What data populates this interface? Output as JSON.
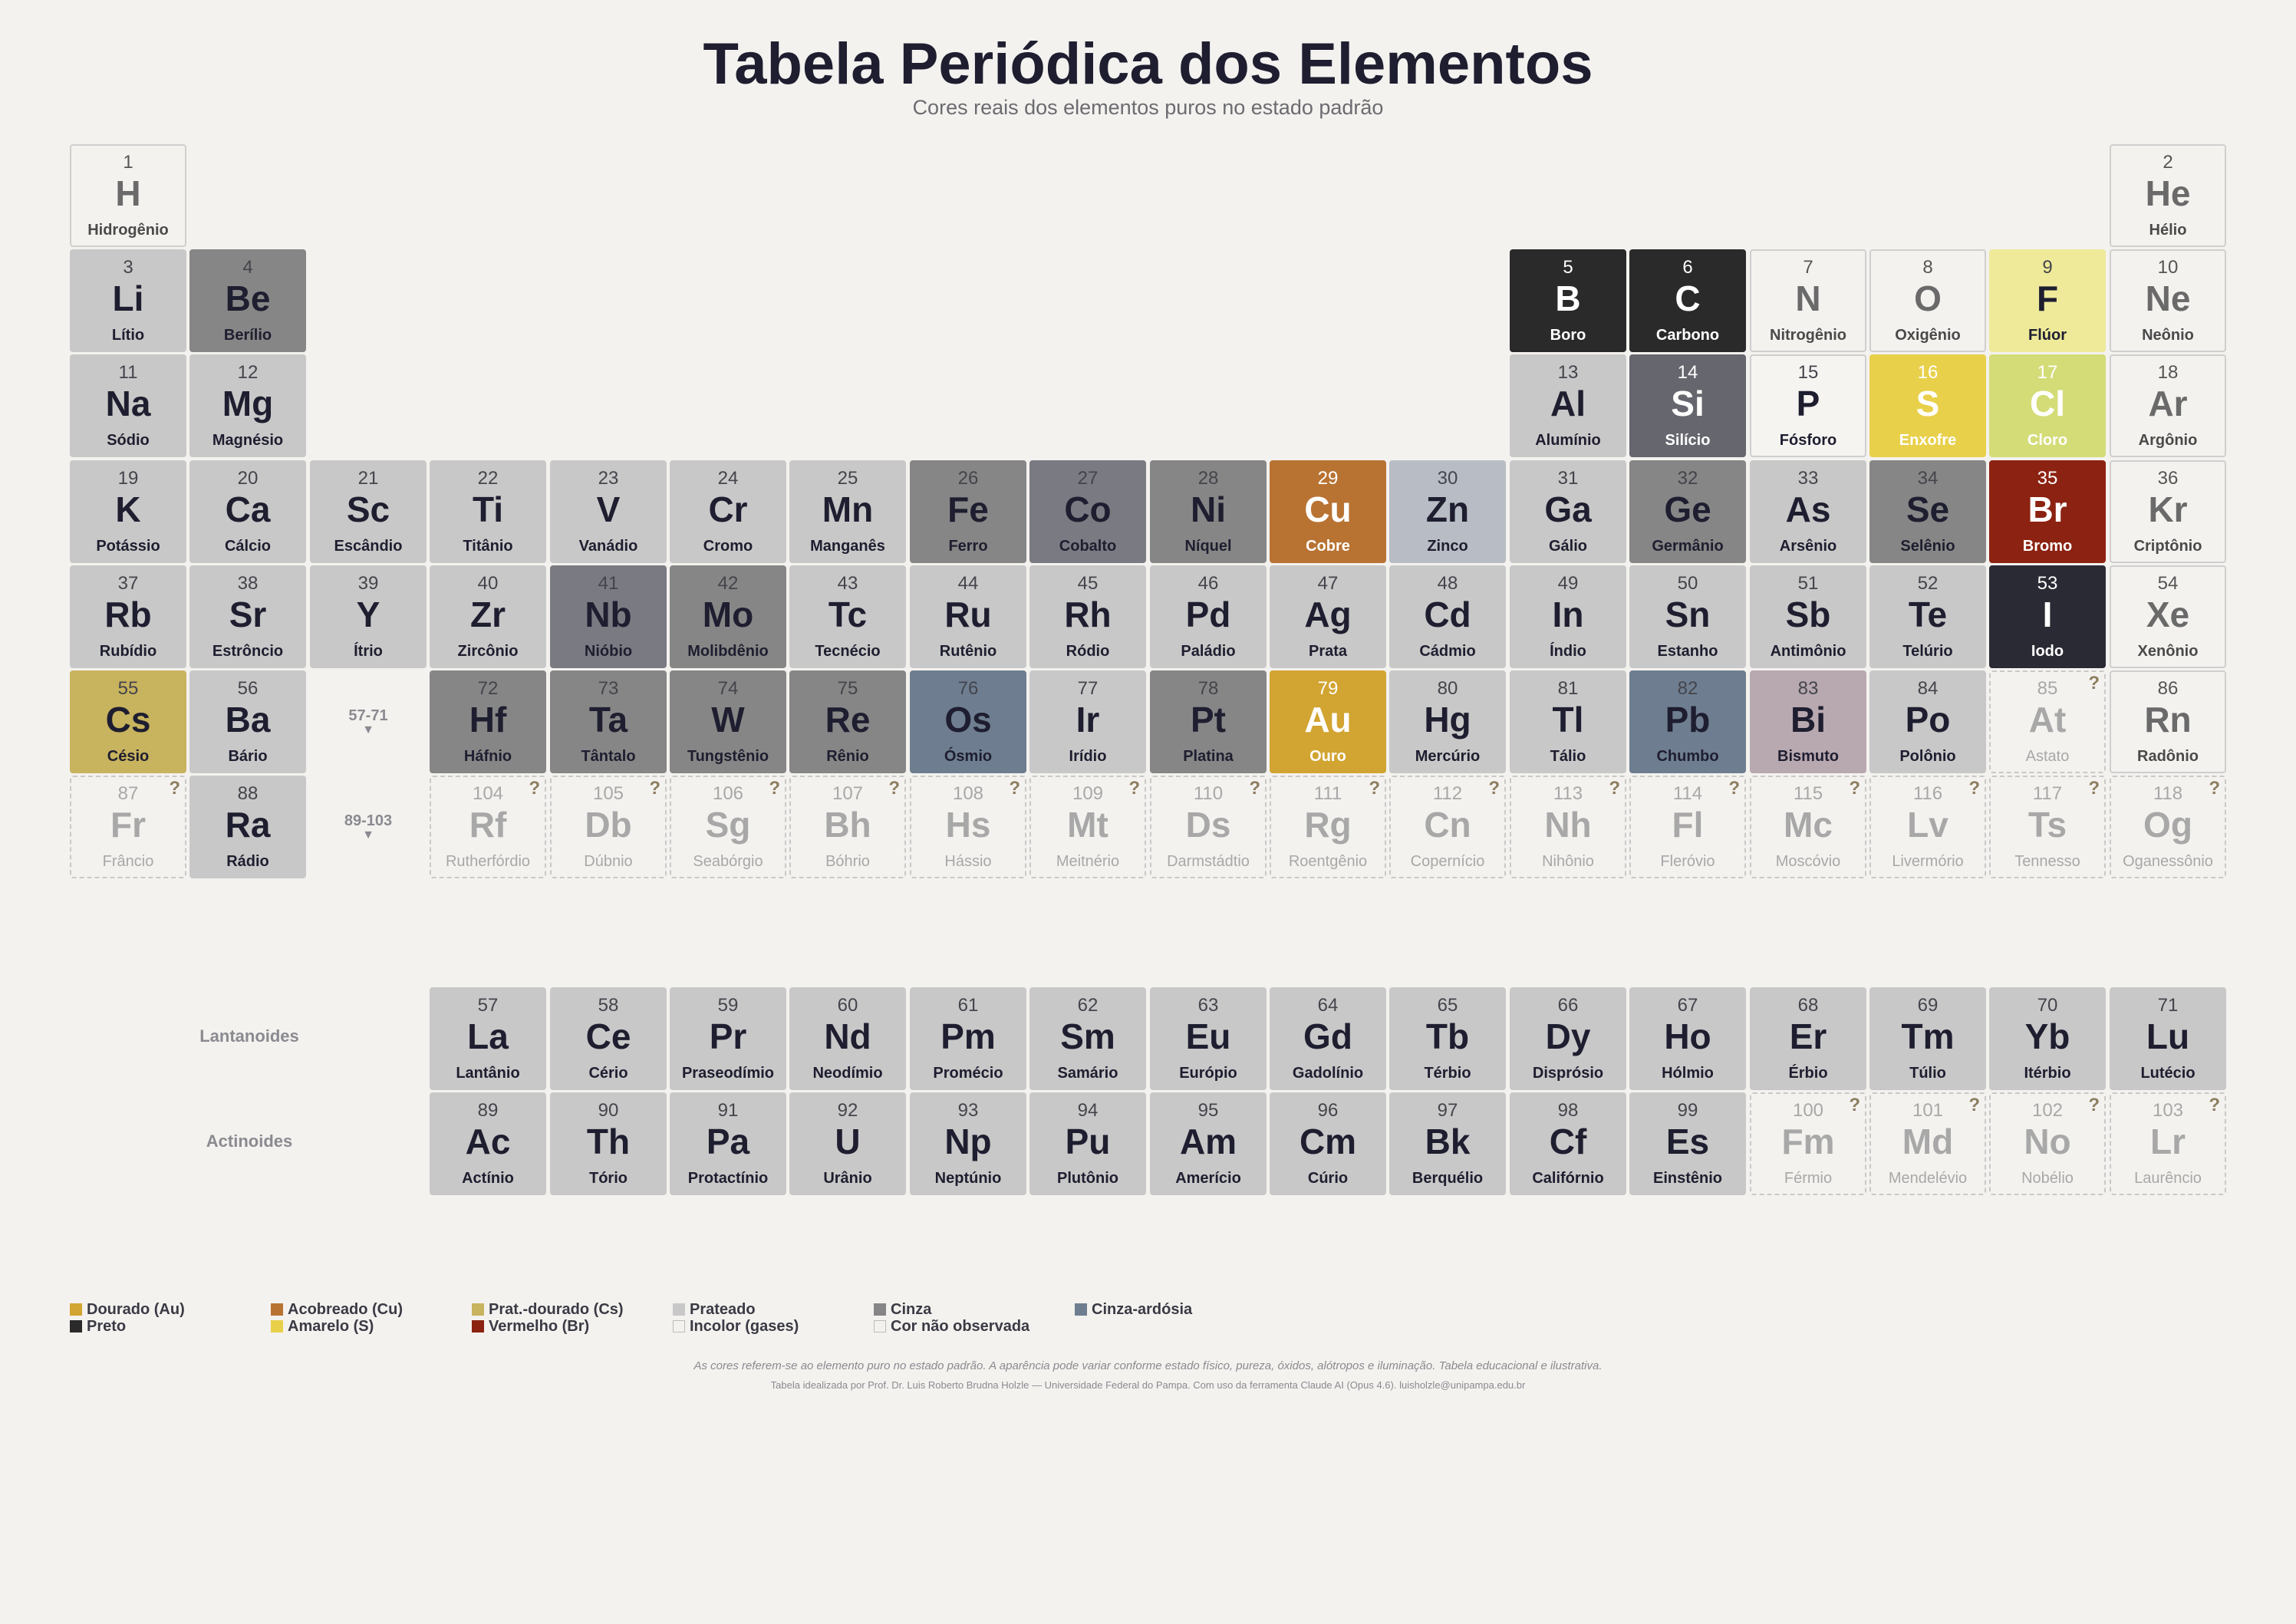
{
  "title": "Tabela Periódica dos Elementos",
  "subtitle": "Cores reais dos elementos puros no estado padrão",
  "colors": {
    "dourado": "#d2a431",
    "acobreado": "#b87333",
    "prat_dourado": "#c8b35e",
    "prateado": "#c8c8c8",
    "cinza": "#868686",
    "cinza_ardosia": "#6e7e90",
    "preto": "#2a2a2a",
    "amarelo": "#e8d04a",
    "vermelho": "#8c2211",
    "incolor": "#f4f2ef"
  },
  "elements": [
    {
      "n": "1",
      "s": "H",
      "name": "Hidrogênio",
      "row": 1,
      "col": 1,
      "color": "#f4f2ef",
      "kind": "gas"
    },
    {
      "n": "2",
      "s": "He",
      "name": "Hélio",
      "row": 1,
      "col": 18,
      "color": "#f4f2ef",
      "kind": "gas"
    },
    {
      "n": "3",
      "s": "Li",
      "name": "Lítio",
      "row": 2,
      "col": 1,
      "color": "#c8c8c8",
      "kind": "light"
    },
    {
      "n": "4",
      "s": "Be",
      "name": "Berílio",
      "row": 2,
      "col": 2,
      "color": "#868686",
      "kind": "light"
    },
    {
      "n": "5",
      "s": "B",
      "name": "Boro",
      "row": 2,
      "col": 13,
      "color": "#2a2a2a",
      "kind": "dark"
    },
    {
      "n": "6",
      "s": "C",
      "name": "Carbono",
      "row": 2,
      "col": 14,
      "color": "#2a2a2a",
      "kind": "dark"
    },
    {
      "n": "7",
      "s": "N",
      "name": "Nitrogênio",
      "row": 2,
      "col": 15,
      "color": "#f4f2ef",
      "kind": "gas"
    },
    {
      "n": "8",
      "s": "O",
      "name": "Oxigênio",
      "row": 2,
      "col": 16,
      "color": "#f4f2ef",
      "kind": "gas"
    },
    {
      "n": "9",
      "s": "F",
      "name": "Flúor",
      "row": 2,
      "col": 17,
      "color": "#eeea9a",
      "kind": "light"
    },
    {
      "n": "10",
      "s": "Ne",
      "name": "Neônio",
      "row": 2,
      "col": 18,
      "color": "#f4f2ef",
      "kind": "gas"
    },
    {
      "n": "11",
      "s": "Na",
      "name": "Sódio",
      "row": 3,
      "col": 1,
      "color": "#c8c8c8",
      "kind": "light"
    },
    {
      "n": "12",
      "s": "Mg",
      "name": "Magnésio",
      "row": 3,
      "col": 2,
      "color": "#c8c8c8",
      "kind": "light"
    },
    {
      "n": "13",
      "s": "Al",
      "name": "Alumínio",
      "row": 3,
      "col": 13,
      "color": "#c8c8c8",
      "kind": "light"
    },
    {
      "n": "14",
      "s": "Si",
      "name": "Silício",
      "row": 3,
      "col": 14,
      "color": "#66666e",
      "kind": "dark"
    },
    {
      "n": "15",
      "s": "P",
      "name": "Fósforo",
      "row": 3,
      "col": 15,
      "color": "#f6f4f1",
      "kind": "light"
    },
    {
      "n": "16",
      "s": "S",
      "name": "Enxofre",
      "row": 3,
      "col": 16,
      "color": "#e8d04a",
      "kind": "dark"
    },
    {
      "n": "17",
      "s": "Cl",
      "name": "Cloro",
      "row": 3,
      "col": 17,
      "color": "#d4dc78",
      "kind": "dark"
    },
    {
      "n": "18",
      "s": "Ar",
      "name": "Argônio",
      "row": 3,
      "col": 18,
      "color": "#f4f2ef",
      "kind": "gas"
    },
    {
      "n": "19",
      "s": "K",
      "name": "Potássio",
      "row": 4,
      "col": 1,
      "color": "#c8c8c8",
      "kind": "light"
    },
    {
      "n": "20",
      "s": "Ca",
      "name": "Cálcio",
      "row": 4,
      "col": 2,
      "color": "#c8c8c8",
      "kind": "light"
    },
    {
      "n": "21",
      "s": "Sc",
      "name": "Escândio",
      "row": 4,
      "col": 3,
      "color": "#c8c8c8",
      "kind": "light"
    },
    {
      "n": "22",
      "s": "Ti",
      "name": "Titânio",
      "row": 4,
      "col": 4,
      "color": "#c8c8c8",
      "kind": "light"
    },
    {
      "n": "23",
      "s": "V",
      "name": "Vanádio",
      "row": 4,
      "col": 5,
      "color": "#c8c8c8",
      "kind": "light"
    },
    {
      "n": "24",
      "s": "Cr",
      "name": "Cromo",
      "row": 4,
      "col": 6,
      "color": "#c8c8c8",
      "kind": "light"
    },
    {
      "n": "25",
      "s": "Mn",
      "name": "Manganês",
      "row": 4,
      "col": 7,
      "color": "#c8c8c8",
      "kind": "light"
    },
    {
      "n": "26",
      "s": "Fe",
      "name": "Ferro",
      "row": 4,
      "col": 8,
      "color": "#868686",
      "kind": "light"
    },
    {
      "n": "27",
      "s": "Co",
      "name": "Cobalto",
      "row": 4,
      "col": 9,
      "color": "#7a7a82",
      "kind": "light"
    },
    {
      "n": "28",
      "s": "Ni",
      "name": "Níquel",
      "row": 4,
      "col": 10,
      "color": "#868686",
      "kind": "light"
    },
    {
      "n": "29",
      "s": "Cu",
      "name": "Cobre",
      "row": 4,
      "col": 11,
      "color": "#b87333",
      "kind": "dark"
    },
    {
      "n": "30",
      "s": "Zn",
      "name": "Zinco",
      "row": 4,
      "col": 12,
      "color": "#b8bcc4",
      "kind": "light"
    },
    {
      "n": "31",
      "s": "Ga",
      "name": "Gálio",
      "row": 4,
      "col": 13,
      "color": "#c8c8c8",
      "kind": "light"
    },
    {
      "n": "32",
      "s": "Ge",
      "name": "Germânio",
      "row": 4,
      "col": 14,
      "color": "#868686",
      "kind": "light"
    },
    {
      "n": "33",
      "s": "As",
      "name": "Arsênio",
      "row": 4,
      "col": 15,
      "color": "#c8c8c8",
      "kind": "light"
    },
    {
      "n": "34",
      "s": "Se",
      "name": "Selênio",
      "row": 4,
      "col": 16,
      "color": "#868686",
      "kind": "light"
    },
    {
      "n": "35",
      "s": "Br",
      "name": "Bromo",
      "row": 4,
      "col": 17,
      "color": "#8c2211",
      "kind": "dark"
    },
    {
      "n": "36",
      "s": "Kr",
      "name": "Criptônio",
      "row": 4,
      "col": 18,
      "color": "#f4f2ef",
      "kind": "gas"
    },
    {
      "n": "37",
      "s": "Rb",
      "name": "Rubídio",
      "row": 5,
      "col": 1,
      "color": "#c8c8c8",
      "kind": "light"
    },
    {
      "n": "38",
      "s": "Sr",
      "name": "Estrôncio",
      "row": 5,
      "col": 2,
      "color": "#c8c8c8",
      "kind": "light"
    },
    {
      "n": "39",
      "s": "Y",
      "name": "Ítrio",
      "row": 5,
      "col": 3,
      "color": "#c8c8c8",
      "kind": "light"
    },
    {
      "n": "40",
      "s": "Zr",
      "name": "Zircônio",
      "row": 5,
      "col": 4,
      "color": "#c8c8c8",
      "kind": "light"
    },
    {
      "n": "41",
      "s": "Nb",
      "name": "Nióbio",
      "row": 5,
      "col": 5,
      "color": "#7a7a82",
      "kind": "light"
    },
    {
      "n": "42",
      "s": "Mo",
      "name": "Molibdênio",
      "row": 5,
      "col": 6,
      "color": "#868686",
      "kind": "light"
    },
    {
      "n": "43",
      "s": "Tc",
      "name": "Tecnécio",
      "row": 5,
      "col": 7,
      "color": "#c8c8c8",
      "kind": "light"
    },
    {
      "n": "44",
      "s": "Ru",
      "name": "Rutênio",
      "row": 5,
      "col": 8,
      "color": "#c8c8c8",
      "kind": "light"
    },
    {
      "n": "45",
      "s": "Rh",
      "name": "Ródio",
      "row": 5,
      "col": 9,
      "color": "#c8c8c8",
      "kind": "light"
    },
    {
      "n": "46",
      "s": "Pd",
      "name": "Paládio",
      "row": 5,
      "col": 10,
      "color": "#c8c8c8",
      "kind": "light"
    },
    {
      "n": "47",
      "s": "Ag",
      "name": "Prata",
      "row": 5,
      "col": 11,
      "color": "#c8c8c8",
      "kind": "light"
    },
    {
      "n": "48",
      "s": "Cd",
      "name": "Cádmio",
      "row": 5,
      "col": 12,
      "color": "#c8c8c8",
      "kind": "light"
    },
    {
      "n": "49",
      "s": "In",
      "name": "Índio",
      "row": 5,
      "col": 13,
      "color": "#c8c8c8",
      "kind": "light"
    },
    {
      "n": "50",
      "s": "Sn",
      "name": "Estanho",
      "row": 5,
      "col": 14,
      "color": "#c8c8c8",
      "kind": "light"
    },
    {
      "n": "51",
      "s": "Sb",
      "name": "Antimônio",
      "row": 5,
      "col": 15,
      "color": "#c8c8c8",
      "kind": "light"
    },
    {
      "n": "52",
      "s": "Te",
      "name": "Telúrio",
      "row": 5,
      "col": 16,
      "color": "#c8c8c8",
      "kind": "light"
    },
    {
      "n": "53",
      "s": "I",
      "name": "Iodo",
      "row": 5,
      "col": 17,
      "color": "#2a2a34",
      "kind": "dark"
    },
    {
      "n": "54",
      "s": "Xe",
      "name": "Xenônio",
      "row": 5,
      "col": 18,
      "color": "#f4f2ef",
      "kind": "gas"
    },
    {
      "n": "55",
      "s": "Cs",
      "name": "Césio",
      "row": 6,
      "col": 1,
      "color": "#c8b35e",
      "kind": "light"
    },
    {
      "n": "56",
      "s": "Ba",
      "name": "Bário",
      "row": 6,
      "col": 2,
      "color": "#c8c8c8",
      "kind": "light"
    },
    {
      "n": "72",
      "s": "Hf",
      "name": "Háfnio",
      "row": 6,
      "col": 4,
      "color": "#868686",
      "kind": "light"
    },
    {
      "n": "73",
      "s": "Ta",
      "name": "Tântalo",
      "row": 6,
      "col": 5,
      "color": "#868686",
      "kind": "light"
    },
    {
      "n": "74",
      "s": "W",
      "name": "Tungstênio",
      "row": 6,
      "col": 6,
      "color": "#868686",
      "kind": "light"
    },
    {
      "n": "75",
      "s": "Re",
      "name": "Rênio",
      "row": 6,
      "col": 7,
      "color": "#868686",
      "kind": "light"
    },
    {
      "n": "76",
      "s": "Os",
      "name": "Ósmio",
      "row": 6,
      "col": 8,
      "color": "#6e7e90",
      "kind": "light"
    },
    {
      "n": "77",
      "s": "Ir",
      "name": "Irídio",
      "row": 6,
      "col": 9,
      "color": "#c8c8c8",
      "kind": "light"
    },
    {
      "n": "78",
      "s": "Pt",
      "name": "Platina",
      "row": 6,
      "col": 10,
      "color": "#868686",
      "kind": "light"
    },
    {
      "n": "79",
      "s": "Au",
      "name": "Ouro",
      "row": 6,
      "col": 11,
      "color": "#d2a431",
      "kind": "dark"
    },
    {
      "n": "80",
      "s": "Hg",
      "name": "Mercúrio",
      "row": 6,
      "col": 12,
      "color": "#c8c8c8",
      "kind": "light"
    },
    {
      "n": "81",
      "s": "Tl",
      "name": "Tálio",
      "row": 6,
      "col": 13,
      "color": "#c8c8c8",
      "kind": "light"
    },
    {
      "n": "82",
      "s": "Pb",
      "name": "Chumbo",
      "row": 6,
      "col": 14,
      "color": "#6e7e90",
      "kind": "light"
    },
    {
      "n": "83",
      "s": "Bi",
      "name": "Bismuto",
      "row": 6,
      "col": 15,
      "color": "#b8a8b0",
      "kind": "light"
    },
    {
      "n": "84",
      "s": "Po",
      "name": "Polônio",
      "row": 6,
      "col": 16,
      "color": "#c8c8c8",
      "kind": "light"
    },
    {
      "n": "85",
      "s": "At",
      "name": "Astato",
      "row": 6,
      "col": 17,
      "color": "#f4f2ef",
      "kind": "unknown"
    },
    {
      "n": "86",
      "s": "Rn",
      "name": "Radônio",
      "row": 6,
      "col": 18,
      "color": "#f4f2ef",
      "kind": "gas"
    },
    {
      "n": "87",
      "s": "Fr",
      "name": "Frâncio",
      "row": 7,
      "col": 1,
      "color": "#f4f2ef",
      "kind": "unknown"
    },
    {
      "n": "88",
      "s": "Ra",
      "name": "Rádio",
      "row": 7,
      "col": 2,
      "color": "#c8c8c8",
      "kind": "light"
    },
    {
      "n": "104",
      "s": "Rf",
      "name": "Rutherfórdio",
      "row": 7,
      "col": 4,
      "color": "#f4f2ef",
      "kind": "unknown"
    },
    {
      "n": "105",
      "s": "Db",
      "name": "Dúbnio",
      "row": 7,
      "col": 5,
      "color": "#f4f2ef",
      "kind": "unknown"
    },
    {
      "n": "106",
      "s": "Sg",
      "name": "Seabórgio",
      "row": 7,
      "col": 6,
      "color": "#f4f2ef",
      "kind": "unknown"
    },
    {
      "n": "107",
      "s": "Bh",
      "name": "Bóhrio",
      "row": 7,
      "col": 7,
      "color": "#f4f2ef",
      "kind": "unknown"
    },
    {
      "n": "108",
      "s": "Hs",
      "name": "Hássio",
      "row": 7,
      "col": 8,
      "color": "#f4f2ef",
      "kind": "unknown"
    },
    {
      "n": "109",
      "s": "Mt",
      "name": "Meitnério",
      "row": 7,
      "col": 9,
      "color": "#f4f2ef",
      "kind": "unknown"
    },
    {
      "n": "110",
      "s": "Ds",
      "name": "Darmstádtio",
      "row": 7,
      "col": 10,
      "color": "#f4f2ef",
      "kind": "unknown"
    },
    {
      "n": "111",
      "s": "Rg",
      "name": "Roentgênio",
      "row": 7,
      "col": 11,
      "color": "#f4f2ef",
      "kind": "unknown"
    },
    {
      "n": "112",
      "s": "Cn",
      "name": "Copernício",
      "row": 7,
      "col": 12,
      "color": "#f4f2ef",
      "kind": "unknown"
    },
    {
      "n": "113",
      "s": "Nh",
      "name": "Nihônio",
      "row": 7,
      "col": 13,
      "color": "#f4f2ef",
      "kind": "unknown"
    },
    {
      "n": "114",
      "s": "Fl",
      "name": "Fleróvio",
      "row": 7,
      "col": 14,
      "color": "#f4f2ef",
      "kind": "unknown"
    },
    {
      "n": "115",
      "s": "Mc",
      "name": "Moscóvio",
      "row": 7,
      "col": 15,
      "color": "#f4f2ef",
      "kind": "unknown"
    },
    {
      "n": "116",
      "s": "Lv",
      "name": "Livermório",
      "row": 7,
      "col": 16,
      "color": "#f4f2ef",
      "kind": "unknown"
    },
    {
      "n": "117",
      "s": "Ts",
      "name": "Tennesso",
      "row": 7,
      "col": 17,
      "color": "#f4f2ef",
      "kind": "unknown"
    },
    {
      "n": "118",
      "s": "Og",
      "name": "Oganessônio",
      "row": 7,
      "col": 18,
      "color": "#f4f2ef",
      "kind": "unknown"
    },
    {
      "n": "57",
      "s": "La",
      "name": "Lantânio",
      "row": 9,
      "col": 4,
      "color": "#c8c8c8",
      "kind": "light"
    },
    {
      "n": "58",
      "s": "Ce",
      "name": "Cério",
      "row": 9,
      "col": 5,
      "color": "#c8c8c8",
      "kind": "light"
    },
    {
      "n": "59",
      "s": "Pr",
      "name": "Praseodímio",
      "row": 9,
      "col": 6,
      "color": "#c8c8c8",
      "kind": "light"
    },
    {
      "n": "60",
      "s": "Nd",
      "name": "Neodímio",
      "row": 9,
      "col": 7,
      "color": "#c8c8c8",
      "kind": "light"
    },
    {
      "n": "61",
      "s": "Pm",
      "name": "Promécio",
      "row": 9,
      "col": 8,
      "color": "#c8c8c8",
      "kind": "light"
    },
    {
      "n": "62",
      "s": "Sm",
      "name": "Samário",
      "row": 9,
      "col": 9,
      "color": "#c8c8c8",
      "kind": "light"
    },
    {
      "n": "63",
      "s": "Eu",
      "name": "Európio",
      "row": 9,
      "col": 10,
      "color": "#c8c8c8",
      "kind": "light"
    },
    {
      "n": "64",
      "s": "Gd",
      "name": "Gadolínio",
      "row": 9,
      "col": 11,
      "color": "#c8c8c8",
      "kind": "light"
    },
    {
      "n": "65",
      "s": "Tb",
      "name": "Térbio",
      "row": 9,
      "col": 12,
      "color": "#c8c8c8",
      "kind": "light"
    },
    {
      "n": "66",
      "s": "Dy",
      "name": "Disprósio",
      "row": 9,
      "col": 13,
      "color": "#c8c8c8",
      "kind": "light"
    },
    {
      "n": "67",
      "s": "Ho",
      "name": "Hólmio",
      "row": 9,
      "col": 14,
      "color": "#c8c8c8",
      "kind": "light"
    },
    {
      "n": "68",
      "s": "Er",
      "name": "Érbio",
      "row": 9,
      "col": 15,
      "color": "#c8c8c8",
      "kind": "light"
    },
    {
      "n": "69",
      "s": "Tm",
      "name": "Túlio",
      "row": 9,
      "col": 16,
      "color": "#c8c8c8",
      "kind": "light"
    },
    {
      "n": "70",
      "s": "Yb",
      "name": "Itérbio",
      "row": 9,
      "col": 17,
      "color": "#c8c8c8",
      "kind": "light"
    },
    {
      "n": "71",
      "s": "Lu",
      "name": "Lutécio",
      "row": 9,
      "col": 18,
      "color": "#c8c8c8",
      "kind": "light"
    },
    {
      "n": "89",
      "s": "Ac",
      "name": "Actínio",
      "row": 10,
      "col": 4,
      "color": "#c8c8c8",
      "kind": "light"
    },
    {
      "n": "90",
      "s": "Th",
      "name": "Tório",
      "row": 10,
      "col": 5,
      "color": "#c8c8c8",
      "kind": "light"
    },
    {
      "n": "91",
      "s": "Pa",
      "name": "Protactínio",
      "row": 10,
      "col": 6,
      "color": "#c8c8c8",
      "kind": "light"
    },
    {
      "n": "92",
      "s": "U",
      "name": "Urânio",
      "row": 10,
      "col": 7,
      "color": "#c8c8c8",
      "kind": "light"
    },
    {
      "n": "93",
      "s": "Np",
      "name": "Neptúnio",
      "row": 10,
      "col": 8,
      "color": "#c8c8c8",
      "kind": "light"
    },
    {
      "n": "94",
      "s": "Pu",
      "name": "Plutônio",
      "row": 10,
      "col": 9,
      "color": "#c8c8c8",
      "kind": "light"
    },
    {
      "n": "95",
      "s": "Am",
      "name": "Amerício",
      "row": 10,
      "col": 10,
      "color": "#c8c8c8",
      "kind": "light"
    },
    {
      "n": "96",
      "s": "Cm",
      "name": "Cúrio",
      "row": 10,
      "col": 11,
      "color": "#c8c8c8",
      "kind": "light"
    },
    {
      "n": "97",
      "s": "Bk",
      "name": "Berquélio",
      "row": 10,
      "col": 12,
      "color": "#c8c8c8",
      "kind": "light"
    },
    {
      "n": "98",
      "s": "Cf",
      "name": "Califórnio",
      "row": 10,
      "col": 13,
      "color": "#c8c8c8",
      "kind": "light"
    },
    {
      "n": "99",
      "s": "Es",
      "name": "Einstênio",
      "row": 10,
      "col": 14,
      "color": "#c8c8c8",
      "kind": "light"
    },
    {
      "n": "100",
      "s": "Fm",
      "name": "Férmio",
      "row": 10,
      "col": 15,
      "color": "#f4f2ef",
      "kind": "unknown"
    },
    {
      "n": "101",
      "s": "Md",
      "name": "Mendelévio",
      "row": 10,
      "col": 16,
      "color": "#f4f2ef",
      "kind": "unknown"
    },
    {
      "n": "102",
      "s": "No",
      "name": "Nobélio",
      "row": 10,
      "col": 17,
      "color": "#f4f2ef",
      "kind": "unknown"
    },
    {
      "n": "103",
      "s": "Lr",
      "name": "Laurêncio",
      "row": 10,
      "col": 18,
      "color": "#f4f2ef",
      "kind": "unknown"
    }
  ],
  "unknown_mark": "?",
  "gap_markers": [
    {
      "label": "57-71",
      "arrow": "▼",
      "row": 6
    },
    {
      "label": "89-103",
      "arrow": "▼",
      "row": 7
    }
  ],
  "series_labels": {
    "lanthanides": "Lantanoides",
    "actinides": "Actinoides"
  },
  "legend": [
    {
      "label": "Dourado (Au)",
      "color": "#d2a431"
    },
    {
      "label": "Preto",
      "color": "#2a2a2a"
    },
    {
      "label": "Acobreado (Cu)",
      "color": "#b87333"
    },
    {
      "label": "Amarelo (S)",
      "color": "#e8d04a"
    },
    {
      "label": "Prat.-dourado (Cs)",
      "color": "#c8b35e"
    },
    {
      "label": "Vermelho (Br)",
      "color": "#8c2211"
    },
    {
      "label": "Prateado",
      "color": "#c8c8c8"
    },
    {
      "label": "Incolor (gases)",
      "color": "#f4f2ef"
    },
    {
      "label": "Cinza",
      "color": "#868686"
    },
    {
      "label": "Cor não observada",
      "color": "#f4f2ef"
    },
    {
      "label": "Cinza-ardósia",
      "color": "#6e7e90"
    }
  ],
  "footnote": "As cores referem-se ao elemento puro no estado padrão. A aparência pode variar conforme estado físico, pureza, óxidos, alótropos e iluminação. Tabela educacional e ilustrativa.",
  "credit": "Tabela idealizada por Prof. Dr. Luis Roberto Brudna Holzle — Universidade Federal do Pampa. Com uso da ferramenta Claude AI (Opus 4.6). luisholzle@unipampa.edu.br"
}
